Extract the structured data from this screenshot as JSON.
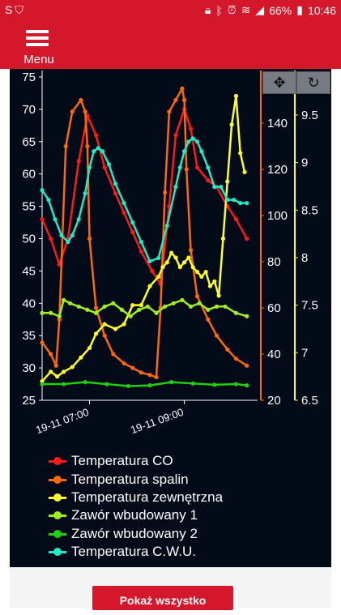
{
  "status_bar": {
    "left_icons": [
      "s-icon",
      "shield-icon"
    ],
    "right_icons": [
      "lock-icon",
      "bluetooth-icon",
      "alarm-icon",
      "wifi-icon",
      "signal-icon"
    ],
    "battery": "66%",
    "time": "10:46"
  },
  "header": {
    "menu_label": "Menu"
  },
  "controls": {
    "pan_icon": "✥",
    "reset_icon": "↻"
  },
  "chart_data": {
    "type": "line",
    "x_tick_labels": [
      "19-11 07:00",
      "19-11 09:00"
    ],
    "axes": {
      "left": {
        "range": [
          25,
          75
        ],
        "ticks": [
          25,
          30,
          35,
          40,
          45,
          50,
          55,
          60,
          65,
          70,
          75
        ]
      },
      "right1": {
        "range": [
          20,
          160
        ],
        "ticks": [
          20,
          40,
          60,
          80,
          100,
          120,
          140
        ],
        "color": "#ff6a00"
      },
      "right2": {
        "range": [
          6.5,
          9.9
        ],
        "ticks": [
          6.5,
          7,
          7.5,
          8,
          8.5,
          9,
          9.5
        ],
        "color": "#ffff22"
      }
    },
    "series": [
      {
        "name": "Temperatura CO",
        "color": "#ff1a1a",
        "axis": "left",
        "x": [
          0,
          4,
          8,
          12,
          17,
          21,
          25,
          29,
          34,
          38,
          42,
          46,
          51,
          55,
          59,
          62,
          66,
          69,
          72,
          77,
          81,
          86,
          90,
          95
        ],
        "y": [
          53,
          50,
          46,
          50,
          62,
          69,
          66,
          61,
          57,
          54,
          51,
          48,
          45,
          43,
          55,
          66,
          70,
          67,
          61,
          59,
          58,
          55,
          53,
          50
        ]
      },
      {
        "name": "Temperatura spalin",
        "color": "#ff6a00",
        "axis": "right1",
        "x": [
          0,
          4,
          6.5,
          8,
          11,
          14,
          18,
          20,
          21,
          22,
          25,
          29,
          33,
          38,
          42,
          46,
          50,
          53,
          55,
          57,
          59,
          62,
          65,
          66,
          67,
          69,
          72,
          77,
          81,
          86,
          90,
          95
        ],
        "y": [
          45,
          40,
          35,
          55,
          130,
          145,
          150,
          145,
          130,
          90,
          60,
          48,
          40,
          36,
          34,
          32,
          31,
          30,
          60,
          110,
          145,
          150,
          155,
          150,
          120,
          85,
          65,
          55,
          48,
          42,
          38,
          35
        ]
      },
      {
        "name": "Temperatura zewnętrzna",
        "color": "#ffff22",
        "axis": "right2",
        "x": [
          0,
          4,
          7,
          10,
          14,
          18,
          22,
          25,
          29,
          34,
          38,
          42,
          46,
          50,
          54,
          56,
          58,
          60,
          62,
          64,
          66,
          68,
          70,
          72,
          74,
          76,
          78,
          80,
          82,
          84,
          86,
          88,
          90,
          92,
          94
        ],
        "y": [
          6.7,
          6.8,
          6.75,
          6.8,
          6.85,
          6.95,
          7.05,
          7.2,
          7.3,
          7.25,
          7.3,
          7.5,
          7.5,
          7.7,
          7.8,
          7.9,
          7.95,
          8.05,
          8.0,
          7.9,
          7.95,
          8.0,
          7.9,
          7.85,
          7.8,
          7.85,
          7.7,
          7.75,
          7.6,
          8.2,
          8.8,
          9.4,
          9.7,
          9.1,
          8.9
        ]
      },
      {
        "name": "Zawór wbudowany 1",
        "color": "#a0f020",
        "axis": "left",
        "x": [
          0,
          4,
          8,
          10,
          13,
          17,
          21,
          25,
          29,
          33,
          37,
          41,
          45,
          49,
          53,
          57,
          61,
          65,
          69,
          73,
          77,
          81,
          85,
          90,
          95
        ],
        "y": [
          38.5,
          38.5,
          38,
          40.5,
          40,
          39.5,
          39,
          38.5,
          39.5,
          40,
          39,
          38,
          39,
          39.5,
          38.5,
          39.5,
          40,
          40.5,
          39.5,
          40,
          39,
          39.5,
          39.5,
          38.5,
          38
        ]
      },
      {
        "name": "Zawór wbudowany 2",
        "color": "#20d010",
        "axis": "left",
        "x": [
          0,
          10,
          20,
          30,
          40,
          50,
          60,
          70,
          80,
          90,
          95
        ],
        "y": [
          27.5,
          27.5,
          27.8,
          27.5,
          27.2,
          27.3,
          27.8,
          27.6,
          27.4,
          27.5,
          27.3
        ]
      },
      {
        "name": "Temperatura C.W.U.",
        "color": "#20ebc8",
        "axis": "left",
        "x": [
          0,
          3,
          6,
          9,
          12,
          14,
          17,
          20,
          22,
          24,
          26,
          28,
          31,
          34,
          38,
          42,
          46,
          50,
          54,
          58,
          62,
          64,
          66,
          68,
          70,
          72,
          74,
          77,
          80,
          83,
          86,
          89,
          92,
          95
        ],
        "y": [
          57.5,
          56,
          53,
          50.5,
          49.5,
          50.5,
          53,
          57,
          61,
          63.5,
          64,
          63.5,
          61.5,
          58.5,
          55.5,
          52.5,
          49.5,
          46.5,
          47,
          52,
          58,
          61,
          63.5,
          65,
          65.5,
          65,
          63.5,
          61,
          58,
          58,
          56,
          56,
          55.5,
          55.5
        ]
      }
    ]
  },
  "actions": {
    "show_all": "Pokaż wszystko"
  },
  "colors": {
    "brand": "#d4172a",
    "chart_bg": "#030a18"
  }
}
